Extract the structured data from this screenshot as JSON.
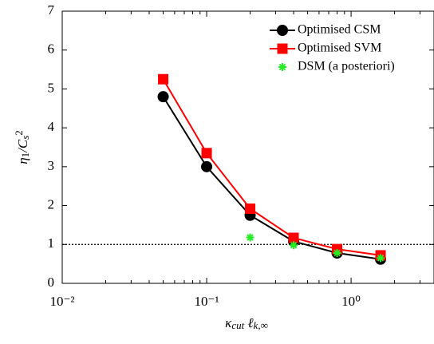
{
  "chart_data": {
    "type": "line",
    "xlabel": [
      {
        "text": "κ",
        "italic": true
      },
      {
        "text": "cut",
        "sub": true,
        "italic": true
      },
      {
        "text": " ℓ",
        "italic": true
      },
      {
        "text": "k,∞",
        "sub": true,
        "italic": true
      }
    ],
    "ylabel": [
      {
        "text": "η",
        "italic": true
      },
      {
        "text": "1",
        "sub": true
      },
      {
        "text": "/C",
        "italic": true
      },
      {
        "text": "s",
        "sub": true,
        "italic": true
      },
      {
        "text": "2",
        "sup": true
      }
    ],
    "x": [
      0.05,
      0.1,
      0.2,
      0.4,
      0.8,
      1.6
    ],
    "series": [
      {
        "name": "Optimised CSM",
        "color": "#000000",
        "marker": "circle",
        "line": true,
        "values": [
          4.8,
          3.0,
          1.75,
          1.08,
          0.78,
          0.62
        ]
      },
      {
        "name": "Optimised SVM",
        "color": "#ff0000",
        "marker": "square",
        "line": true,
        "values": [
          5.25,
          3.35,
          1.92,
          1.17,
          0.88,
          0.72
        ]
      },
      {
        "name": "DSM (a posteriori)",
        "color": "#22ee22",
        "marker": "star",
        "line": false,
        "values": [
          null,
          null,
          1.18,
          0.98,
          0.78,
          0.65
        ]
      }
    ],
    "hline": 1,
    "xscale": "log",
    "xlim": [
      0.01,
      3.75
    ],
    "xticks": [
      {
        "value": 0.01,
        "label": "10⁻²"
      },
      {
        "value": 0.1,
        "label": "10⁻¹"
      },
      {
        "value": 1,
        "label": "10⁰"
      }
    ],
    "ylim": [
      0,
      7
    ],
    "yticks": [
      0,
      1,
      2,
      3,
      4,
      5,
      6,
      7
    ],
    "legend": "upper right"
  }
}
